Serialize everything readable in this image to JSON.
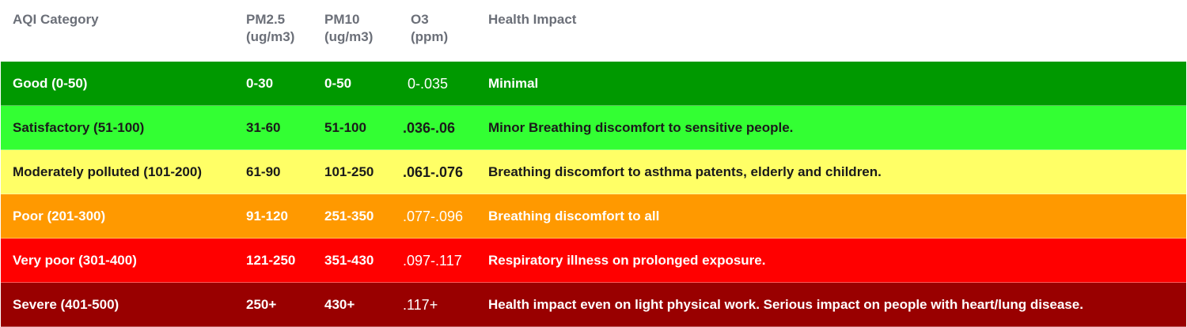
{
  "header": {
    "category": "AQI Category",
    "pm25": "PM2.5\n(ug/m3)",
    "pm10": "PM10\n(ug/m3)",
    "o3": "O3\n(ppm)",
    "impact": "Health Impact"
  },
  "rows": [
    {
      "category": "Good  (0-50)",
      "pm25": "0-30",
      "pm10": "0-50",
      "o3": "0-.035",
      "impact": "Minimal",
      "bg": "#009900",
      "fg": "#ffffff"
    },
    {
      "category": "Satisfactory (51-100)",
      "pm25": "31-60",
      "pm10": "51-100",
      "o3": ".036-.06",
      "impact": "Minor Breathing discomfort to sensitive people.",
      "bg": "#33ff33",
      "fg": "#1a1a1a"
    },
    {
      "category": "Moderately polluted (101-200)",
      "pm25": "61-90",
      "pm10": "101-250",
      "o3": ".061-.076",
      "impact": "Breathing discomfort to asthma patents, elderly and children.",
      "bg": "#ffff66",
      "fg": "#1a1a1a"
    },
    {
      "category": "Poor (201-300)",
      "pm25": "91-120",
      "pm10": "251-350",
      "o3": ".077-.096",
      "impact": "Breathing discomfort to all",
      "bg": "#ff9900",
      "fg": "#ffffff"
    },
    {
      "category": "Very poor (301-400)",
      "pm25": "121-250",
      "pm10": "351-430",
      "o3": ".097-.117",
      "impact": "Respiratory illness on prolonged exposure.",
      "bg": "#ff0000",
      "fg": "#ffffff"
    },
    {
      "category": "Severe (401-500)",
      "pm25": "250+",
      "pm10": "430+",
      "o3": ".117+",
      "impact": "Health impact even on light physical work. Serious impact on people with heart/lung disease.",
      "bg": "#990000",
      "fg": "#ffffff"
    }
  ]
}
